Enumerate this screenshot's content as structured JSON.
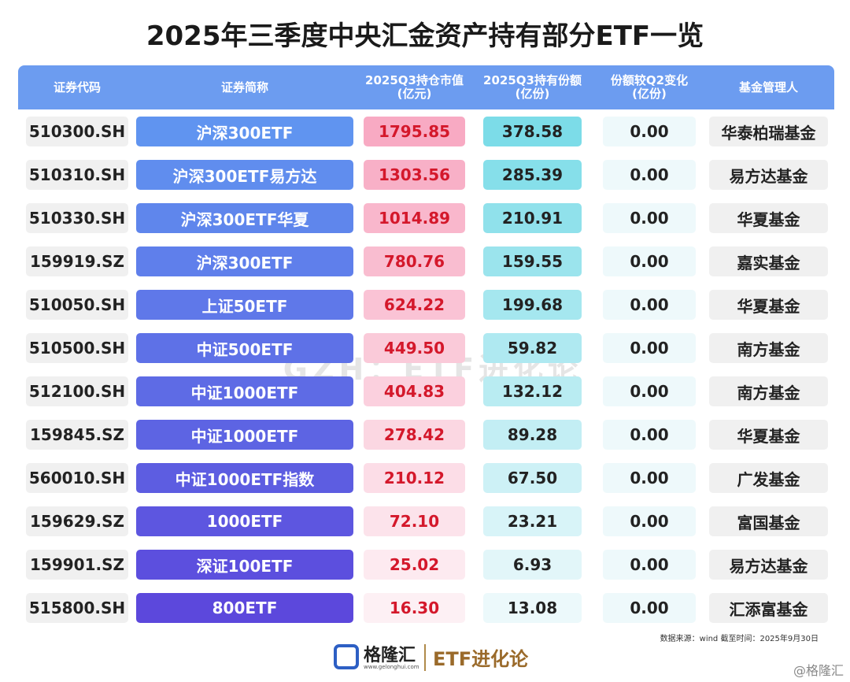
{
  "header": {
    "title": "2025年三季度中央汇金资产持有部分ETF一览"
  },
  "table": {
    "columns": [
      [
        "证券代码"
      ],
      [
        "证券简称"
      ],
      [
        "2025Q3持仓市值",
        "(亿元)"
      ],
      [
        "2025Q3持有份额",
        "(亿份)"
      ],
      [
        "份额较Q2变化",
        "(亿份)"
      ],
      [
        "基金管理人"
      ]
    ],
    "rows": [
      [
        "510300.SH",
        "沪深300ETF",
        "1795.85",
        "378.58",
        "0.00",
        "华泰柏瑞基金"
      ],
      [
        "510310.SH",
        "沪深300ETF易方达",
        "1303.56",
        "285.39",
        "0.00",
        "易方达基金"
      ],
      [
        "510330.SH",
        "沪深300ETF华夏",
        "1014.89",
        "210.91",
        "0.00",
        "华夏基金"
      ],
      [
        "159919.SZ",
        "沪深300ETF",
        "780.76",
        "159.55",
        "0.00",
        "嘉实基金"
      ],
      [
        "510050.SH",
        "上证50ETF",
        "624.22",
        "199.68",
        "0.00",
        "华夏基金"
      ],
      [
        "510500.SH",
        "中证500ETF",
        "449.50",
        "59.82",
        "0.00",
        "南方基金"
      ],
      [
        "512100.SH",
        "中证1000ETF",
        "404.83",
        "132.12",
        "0.00",
        "南方基金"
      ],
      [
        "159845.SZ",
        "中证1000ETF",
        "278.42",
        "89.28",
        "0.00",
        "华夏基金"
      ],
      [
        "560010.SH",
        "中证1000ETF指数",
        "210.12",
        "67.50",
        "0.00",
        "广发基金"
      ],
      [
        "159629.SZ",
        "1000ETF",
        "72.10",
        "23.21",
        "0.00",
        "富国基金"
      ],
      [
        "159901.SZ",
        "深证100ETF",
        "25.02",
        "6.93",
        "0.00",
        "易方达基金"
      ],
      [
        "515800.SH",
        "800ETF",
        "16.30",
        "13.08",
        "0.00",
        "汇添富基金"
      ]
    ]
  },
  "footer": {
    "source": "数据来源：wind 截至时间：2025年9月30日",
    "logo": "格隆汇",
    "logo_url": "www.gelonghui.com",
    "brand": "ETF进化论",
    "corner": "@格隆汇"
  },
  "watermark": "GZH：ETF进化论"
}
